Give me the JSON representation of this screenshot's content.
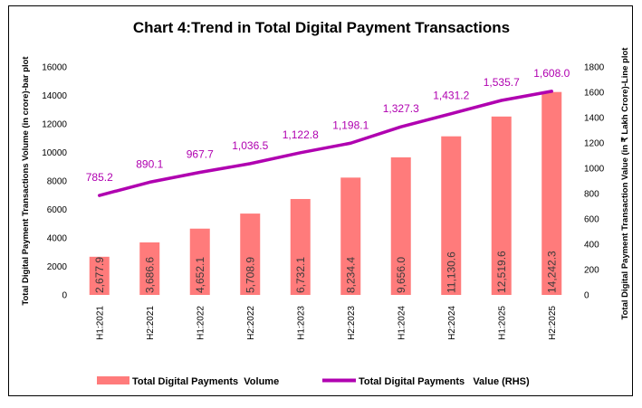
{
  "chart_data": {
    "type": "bar",
    "title": "Chart 4:Trend in Total Digital Payment Transactions",
    "categories": [
      "H1:2021",
      "H2:2021",
      "H1:2022",
      "H2:2022",
      "H1:2023",
      "H2:2023",
      "H1:2024",
      "H2:2024",
      "H1:2025",
      "H2:2025"
    ],
    "ylabel": "Total Digital Payment Transactions Volume (in crore)-bar plot",
    "y2label": "Total Digital Payment Transaction Value (in ₹ Lakh Crore)-Line plot",
    "ylim": [
      0,
      16000
    ],
    "y2lim": [
      0,
      1800
    ],
    "yticks": [
      0,
      2000,
      4000,
      6000,
      8000,
      10000,
      12000,
      14000,
      16000
    ],
    "y2ticks": [
      0,
      200,
      400,
      600,
      800,
      1000,
      1200,
      1400,
      1600,
      1800
    ],
    "grid": false,
    "legend_position": "bottom",
    "series": [
      {
        "name": "Total Digital Payments  Volume",
        "kind": "bar",
        "axis": "left",
        "color": "#ff7b7b",
        "values": [
          2677.9,
          3686.6,
          4652.1,
          5708.9,
          6732.1,
          8234.4,
          9656.0,
          11130.6,
          12519.6,
          14242.3
        ],
        "labels": [
          "2,677.9",
          "3,686.6",
          "4,652.1",
          "5,708.9",
          "6,732.1",
          "8,234.4",
          "9,656.0",
          "11,130.6",
          "12,519.6",
          "14,242.3"
        ]
      },
      {
        "name": "Total Digital Payments   Value (RHS)",
        "kind": "line",
        "axis": "right",
        "color": "#b000b0",
        "values": [
          785.2,
          890.1,
          967.7,
          1036.5,
          1122.8,
          1198.1,
          1327.3,
          1431.2,
          1535.7,
          1608.0
        ],
        "labels": [
          "785.2",
          "890.1",
          "967.7",
          "1,036.5",
          "1,122.8",
          "1,198.1",
          "1,327.3",
          "1,431.2",
          "1,535.7",
          "1,608.0"
        ]
      }
    ]
  }
}
